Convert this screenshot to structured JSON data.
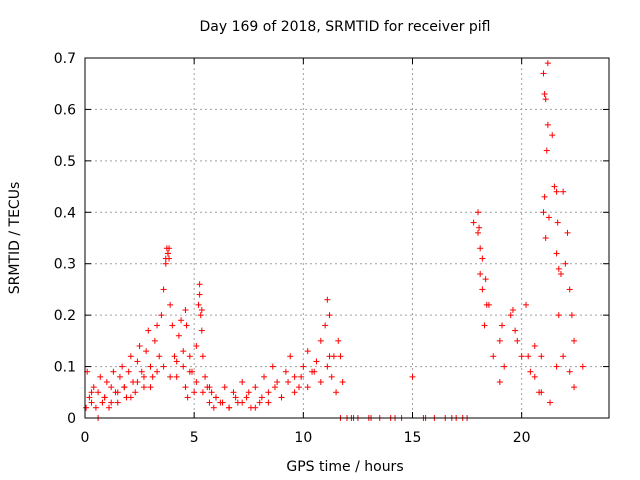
{
  "chart_data": {
    "type": "scatter",
    "title": "Day 169 of 2018, SRMTID for receiver pifl",
    "xlabel": "GPS time / hours",
    "ylabel": "SRMTID / TECUs",
    "xlim": [
      0,
      24
    ],
    "ylim": [
      0,
      0.7
    ],
    "xticks": [
      0,
      5,
      10,
      15,
      20
    ],
    "yticks": [
      0,
      0.1,
      0.2,
      0.3,
      0.4,
      0.5,
      0.6,
      0.7
    ],
    "xtick_labels": [
      "0",
      "5",
      "10",
      "15",
      "20"
    ],
    "ytick_labels": [
      "0",
      "0.1",
      "0.2",
      "0.3",
      "0.4",
      "0.5",
      "0.6",
      "0.7"
    ],
    "grid": true,
    "marker": "plus",
    "series_color": "#ff0000",
    "series": [
      {
        "name": "SRMTID",
        "x": [
          0.05,
          0.1,
          0.2,
          0.3,
          0.4,
          0.5,
          0.6,
          0.7,
          0.8,
          0.9,
          1.0,
          1.1,
          1.2,
          1.3,
          1.4,
          1.5,
          1.6,
          1.7,
          1.8,
          1.9,
          2.0,
          2.1,
          2.2,
          2.3,
          2.4,
          2.5,
          2.6,
          2.7,
          2.8,
          2.9,
          3.0,
          3.1,
          3.2,
          3.3,
          3.4,
          3.5,
          3.6,
          3.7,
          3.75,
          3.8,
          3.85,
          3.9,
          4.0,
          4.1,
          4.2,
          4.3,
          4.4,
          4.5,
          4.6,
          4.7,
          4.8,
          4.9,
          5.0,
          5.1,
          5.2,
          5.25,
          5.3,
          5.35,
          5.4,
          5.5,
          5.6,
          5.7,
          5.8,
          5.9,
          6.0,
          6.2,
          6.4,
          6.6,
          6.8,
          7.0,
          7.2,
          7.4,
          7.6,
          7.8,
          8.0,
          8.2,
          8.4,
          8.6,
          8.8,
          9.0,
          9.2,
          9.4,
          9.6,
          9.8,
          10.0,
          10.2,
          10.4,
          10.6,
          10.8,
          11.0,
          11.1,
          11.2,
          11.3,
          11.5,
          11.6,
          11.7,
          11.8,
          12.0,
          12.2,
          12.5,
          13.0,
          13.5,
          14.0,
          14.5,
          15.0,
          15.5,
          16.0,
          16.5,
          17.0,
          17.5,
          17.8,
          18.0,
          18.1,
          18.2,
          18.3,
          18.5,
          18.7,
          19.0,
          19.2,
          19.5,
          19.7,
          20.0,
          20.2,
          20.4,
          20.6,
          20.8,
          20.9,
          21.0,
          21.05,
          21.1,
          21.2,
          21.4,
          21.5,
          21.6,
          21.7,
          21.8,
          21.9,
          22.0,
          22.1,
          22.2,
          22.3,
          22.4,
          22.8,
          0.3,
          0.6,
          0.9,
          1.2,
          1.5,
          1.8,
          2.1,
          2.4,
          2.7,
          3.0,
          3.3,
          3.6,
          3.9,
          4.2,
          4.5,
          4.8,
          5.1,
          5.4,
          5.7,
          6.0,
          6.3,
          6.6,
          6.9,
          7.2,
          7.5,
          7.8,
          8.1,
          8.4,
          8.7,
          9.0,
          9.3,
          9.6,
          9.9,
          10.2,
          10.5,
          10.8,
          11.1,
          11.4,
          11.7,
          12.0,
          18.1,
          18.4,
          19.1,
          19.8,
          20.3,
          20.6,
          20.9,
          21.3,
          21.6,
          21.9,
          22.2,
          22.4,
          21.0,
          21.05,
          21.1,
          21.15,
          21.2,
          21.25,
          21.6,
          21.65,
          21.7,
          3.7,
          3.8,
          3.85,
          5.25,
          5.35,
          4.6,
          4.65,
          11.2,
          18.0,
          18.05,
          18.2,
          18.35,
          12.3,
          13.1,
          14.2,
          15.6,
          16.8,
          17.3,
          19.0,
          19.6
        ],
        "y": [
          0.02,
          0.09,
          0.04,
          0.03,
          0.06,
          0.02,
          0.05,
          0.08,
          0.03,
          0.04,
          0.07,
          0.02,
          0.06,
          0.09,
          0.05,
          0.03,
          0.08,
          0.1,
          0.06,
          0.04,
          0.09,
          0.12,
          0.07,
          0.05,
          0.11,
          0.14,
          0.09,
          0.06,
          0.13,
          0.17,
          0.1,
          0.08,
          0.15,
          0.18,
          0.12,
          0.2,
          0.25,
          0.3,
          0.33,
          0.32,
          0.31,
          0.22,
          0.18,
          0.12,
          0.08,
          0.16,
          0.19,
          0.1,
          0.06,
          0.04,
          0.12,
          0.09,
          0.05,
          0.14,
          0.22,
          0.26,
          0.2,
          0.17,
          0.12,
          0.08,
          0.06,
          0.03,
          0.05,
          0.02,
          0.04,
          0.03,
          0.06,
          0.02,
          0.05,
          0.03,
          0.07,
          0.04,
          0.02,
          0.06,
          0.03,
          0.08,
          0.05,
          0.1,
          0.07,
          0.04,
          0.09,
          0.12,
          0.08,
          0.06,
          0.1,
          0.13,
          0.09,
          0.11,
          0.15,
          0.18,
          0.23,
          0.12,
          0.08,
          0.05,
          0.15,
          0.12,
          0.07,
          0.0,
          0.0,
          0.0,
          0.0,
          0.0,
          0.0,
          0.0,
          0.08,
          0.0,
          0.0,
          0.0,
          0.0,
          0.0,
          0.38,
          0.4,
          0.33,
          0.25,
          0.18,
          0.22,
          0.12,
          0.15,
          0.1,
          0.2,
          0.17,
          0.12,
          0.22,
          0.09,
          0.14,
          0.05,
          0.12,
          0.4,
          0.43,
          0.35,
          0.69,
          0.55,
          0.45,
          0.32,
          0.2,
          0.28,
          0.44,
          0.3,
          0.36,
          0.25,
          0.2,
          0.15,
          0.1,
          0.05,
          0.0,
          0.04,
          0.03,
          0.05,
          0.06,
          0.04,
          0.07,
          0.08,
          0.06,
          0.09,
          0.1,
          0.08,
          0.11,
          0.13,
          0.09,
          0.07,
          0.05,
          0.06,
          0.04,
          0.03,
          0.02,
          0.04,
          0.03,
          0.05,
          0.02,
          0.04,
          0.03,
          0.06,
          0.04,
          0.07,
          0.05,
          0.08,
          0.06,
          0.09,
          0.07,
          0.1,
          0.12,
          0.0,
          0.0,
          0.28,
          0.22,
          0.18,
          0.15,
          0.12,
          0.08,
          0.05,
          0.03,
          0.1,
          0.12,
          0.09,
          0.06,
          0.67,
          0.63,
          0.62,
          0.52,
          0.57,
          0.39,
          0.44,
          0.38,
          0.29,
          0.31,
          0.32,
          0.33,
          0.24,
          0.21,
          0.21,
          0.18,
          0.2,
          0.36,
          0.37,
          0.31,
          0.27,
          0.0,
          0.0,
          0.0,
          0.0,
          0.0,
          0.0,
          0.07,
          0.21
        ]
      }
    ]
  }
}
